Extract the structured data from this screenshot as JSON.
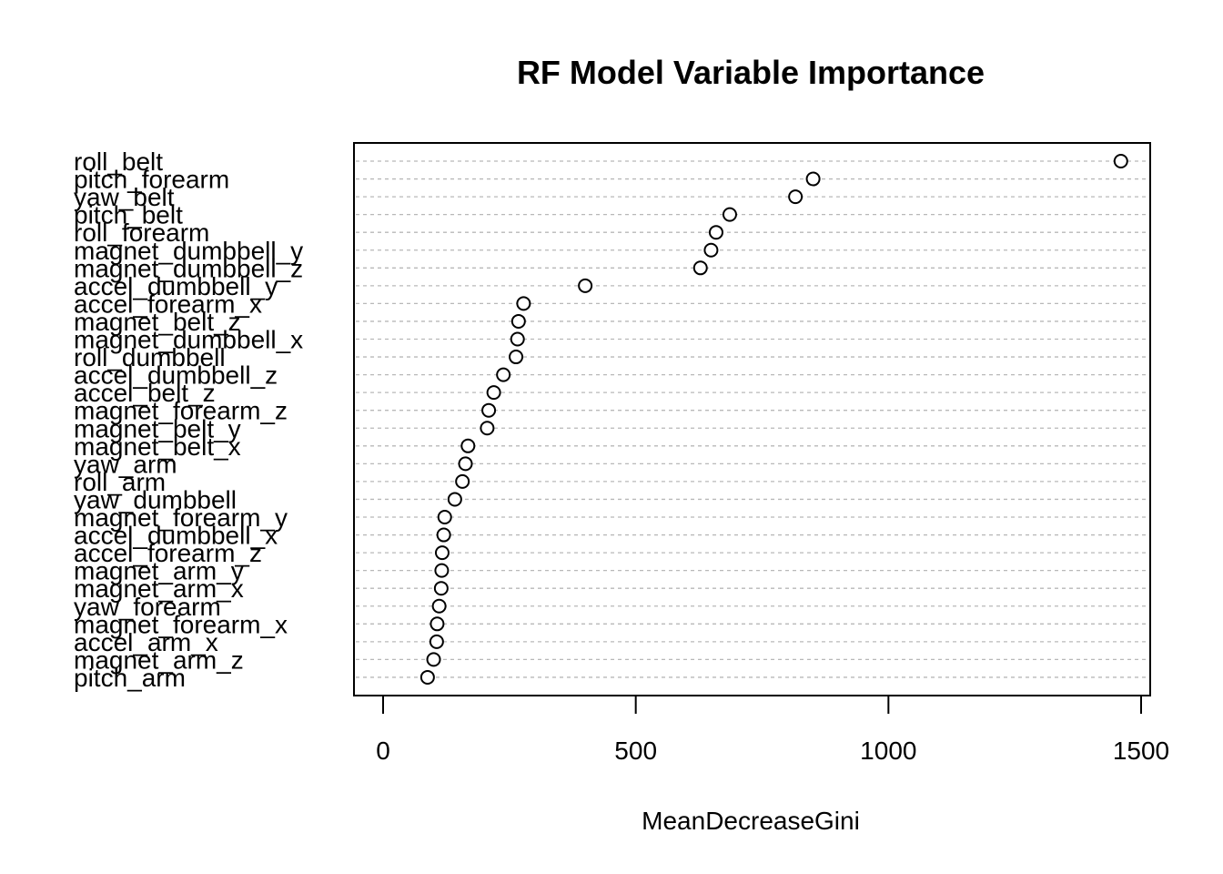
{
  "chart_data": {
    "type": "scatter",
    "subtype": "dotchart",
    "title": "RF Model Variable Importance",
    "xlabel": "MeanDecreaseGini",
    "ylabel": "",
    "xlim": [
      0,
      1500
    ],
    "x_ticks": [
      0,
      500,
      1000,
      1500
    ],
    "grid": "horizontal dashed",
    "categories": [
      "roll_belt",
      "pitch_forearm",
      "yaw_belt",
      "pitch_belt",
      "roll_forearm",
      "magnet_dumbbell_y",
      "magnet_dumbbell_z",
      "accel_dumbbell_y",
      "accel_forearm_x",
      "magnet_belt_z",
      "magnet_dumbbell_x",
      "roll_dumbbell",
      "accel_dumbbell_z",
      "accel_belt_z",
      "magnet_forearm_z",
      "magnet_belt_y",
      "magnet_belt_x",
      "yaw_arm",
      "roll_arm",
      "yaw_dumbbell",
      "magnet_forearm_y",
      "accel_dumbbell_x",
      "accel_forearm_z",
      "magnet_arm_y",
      "magnet_arm_x",
      "yaw_forearm",
      "magnet_forearm_x",
      "accel_arm_x",
      "magnet_arm_z",
      "pitch_arm"
    ],
    "values": [
      1460,
      851,
      816,
      686,
      659,
      649,
      628,
      400,
      278,
      268,
      266,
      263,
      238,
      219,
      209,
      206,
      168,
      163,
      157,
      142,
      122,
      120,
      117,
      116,
      115,
      111,
      107,
      106,
      100,
      88
    ]
  }
}
